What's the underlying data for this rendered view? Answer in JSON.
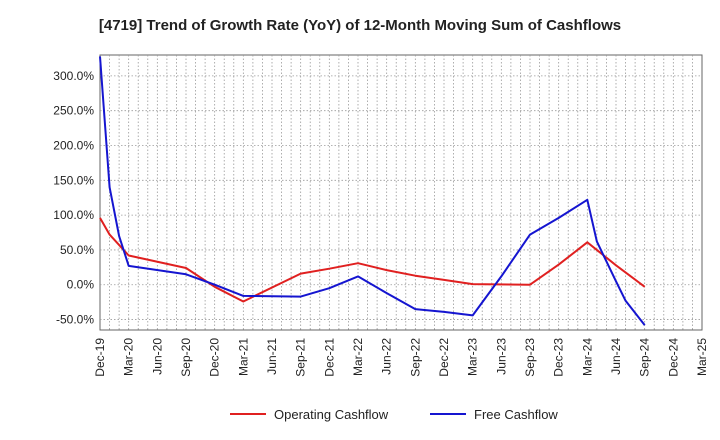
{
  "chart_data": {
    "type": "line",
    "title": "[4719]  Trend of Growth Rate (YoY) of 12-Month Moving Sum of Cashflows",
    "xlabel": "",
    "ylabel": "",
    "x_ticks": [
      "Dec-19",
      "Mar-20",
      "Jun-20",
      "Sep-20",
      "Dec-20",
      "Mar-21",
      "Jun-21",
      "Sep-21",
      "Dec-21",
      "Mar-22",
      "Jun-22",
      "Sep-22",
      "Dec-22",
      "Mar-23",
      "Jun-23",
      "Sep-23",
      "Dec-23",
      "Mar-24",
      "Jun-24",
      "Sep-24",
      "Dec-24",
      "Mar-25"
    ],
    "y_ticks": [
      "300.0%",
      "250.0%",
      "200.0%",
      "150.0%",
      "100.0%",
      "50.0%",
      "0.0%",
      "-50.0%"
    ],
    "y_tick_values": [
      300,
      250,
      200,
      150,
      100,
      50,
      0,
      -50
    ],
    "ylim": [
      -65,
      330
    ],
    "y_unit": "%",
    "grid": true,
    "legend_position": "bottom-center",
    "series": [
      {
        "name": "Operating Cashflow",
        "color": "#e02020",
        "points": [
          {
            "x": "Dec-19",
            "y": 96
          },
          {
            "x": "Jan-20",
            "y": 72
          },
          {
            "x": "Mar-20",
            "y": 42
          },
          {
            "x": "Sep-20",
            "y": 24
          },
          {
            "x": "Dec-20",
            "y": -3
          },
          {
            "x": "Mar-21",
            "y": -24
          },
          {
            "x": "Sep-21",
            "y": 16
          },
          {
            "x": "Dec-21",
            "y": 23
          },
          {
            "x": "Mar-22",
            "y": 31
          },
          {
            "x": "Jun-22",
            "y": 21
          },
          {
            "x": "Sep-22",
            "y": 13
          },
          {
            "x": "Dec-22",
            "y": 7
          },
          {
            "x": "Mar-23",
            "y": 1
          },
          {
            "x": "Sep-23",
            "y": 0
          },
          {
            "x": "Dec-23",
            "y": 29
          },
          {
            "x": "Mar-24",
            "y": 61
          },
          {
            "x": "Jun-24",
            "y": 28
          },
          {
            "x": "Sep-24",
            "y": -3
          }
        ]
      },
      {
        "name": "Free Cashflow",
        "color": "#1515d0",
        "points": [
          {
            "x": "Dec-19",
            "y": 328
          },
          {
            "x": "Jan-20",
            "y": 140
          },
          {
            "x": "Feb-20",
            "y": 70
          },
          {
            "x": "Mar-20",
            "y": 27
          },
          {
            "x": "Sep-20",
            "y": 15
          },
          {
            "x": "Dec-20",
            "y": 0
          },
          {
            "x": "Mar-21",
            "y": -16
          },
          {
            "x": "Sep-21",
            "y": -17
          },
          {
            "x": "Dec-21",
            "y": -5
          },
          {
            "x": "Mar-22",
            "y": 12
          },
          {
            "x": "Jun-22",
            "y": -12
          },
          {
            "x": "Sep-22",
            "y": -35
          },
          {
            "x": "Dec-22",
            "y": -39
          },
          {
            "x": "Mar-23",
            "y": -44
          },
          {
            "x": "Jun-23",
            "y": 12
          },
          {
            "x": "Sep-23",
            "y": 72
          },
          {
            "x": "Dec-23",
            "y": 96
          },
          {
            "x": "Mar-24",
            "y": 122
          },
          {
            "x": "Apr-24",
            "y": 62
          },
          {
            "x": "Jun-24",
            "y": 5
          },
          {
            "x": "Jul-24",
            "y": -23
          },
          {
            "x": "Sep-24",
            "y": -58
          }
        ]
      }
    ]
  }
}
